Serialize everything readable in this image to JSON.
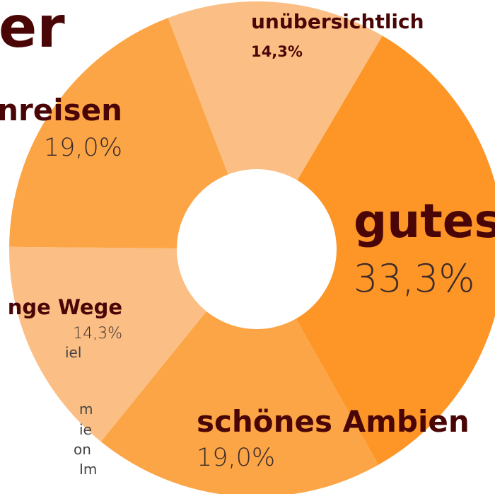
{
  "title": "er",
  "body_fragments": [
    "iel",
    "m",
    "ie",
    "on",
    "Im"
  ],
  "chart_data": {
    "type": "pie",
    "donut": true,
    "categories": [
      "unübersichtlich",
      "gutes",
      "schönes Ambien",
      "nge Wege",
      "nreisen"
    ],
    "values": [
      14.3,
      33.3,
      19.0,
      14.3,
      19.0
    ],
    "value_labels": [
      "14,3%",
      "33,3%",
      "19,0%",
      "14,3%",
      "19,0%"
    ],
    "colors": [
      "#fbbf85",
      "#fd9527",
      "#fca546",
      "#fbbf85",
      "#fca546"
    ]
  }
}
